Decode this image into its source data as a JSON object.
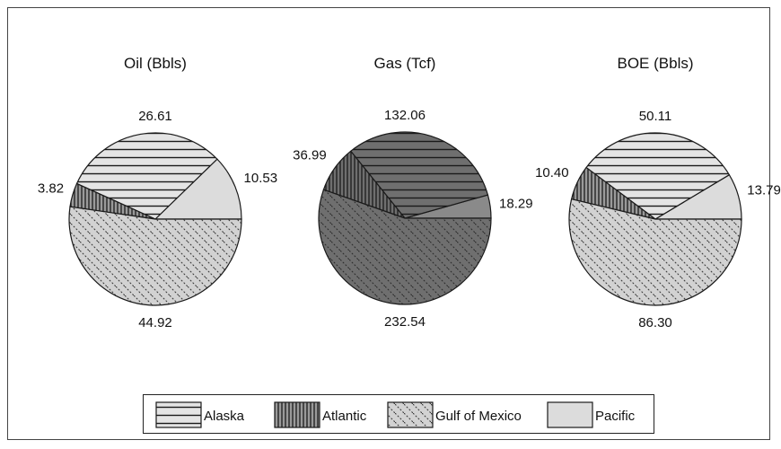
{
  "chart_data": [
    {
      "type": "pie",
      "title": "Oil (Bbls)",
      "categories": [
        "Alaska",
        "Atlantic",
        "Gulf of Mexico",
        "Pacific"
      ],
      "values": [
        26.61,
        3.82,
        44.92,
        10.53
      ],
      "labels": [
        "26.61",
        "3.82",
        "44.92",
        "10.53"
      ]
    },
    {
      "type": "pie",
      "title": "Gas (Tcf)",
      "categories": [
        "Alaska",
        "Atlantic",
        "Gulf of Mexico",
        "Pacific"
      ],
      "values": [
        132.06,
        36.99,
        232.54,
        18.29
      ],
      "labels": [
        "132.06",
        "36.99",
        "232.54",
        "18.29"
      ]
    },
    {
      "type": "pie",
      "title": "BOE (Bbls)",
      "categories": [
        "Alaska",
        "Atlantic",
        "Gulf of Mexico",
        "Pacific"
      ],
      "values": [
        50.11,
        10.4,
        86.3,
        13.79
      ],
      "labels": [
        "50.11",
        "10.40",
        "86.30",
        "13.79"
      ]
    }
  ],
  "legend": {
    "placement": "bottom",
    "items": [
      "Alaska",
      "Atlantic",
      "Gulf of Mexico",
      "Pacific"
    ]
  },
  "colors": {
    "Alaska": "#e4e4e4",
    "Atlantic": "#9a9a9a",
    "Gulf of Mexico": "#d2d2d2",
    "Pacific": "#dcdcdc",
    "gas_pie": "#6f6f6f"
  }
}
